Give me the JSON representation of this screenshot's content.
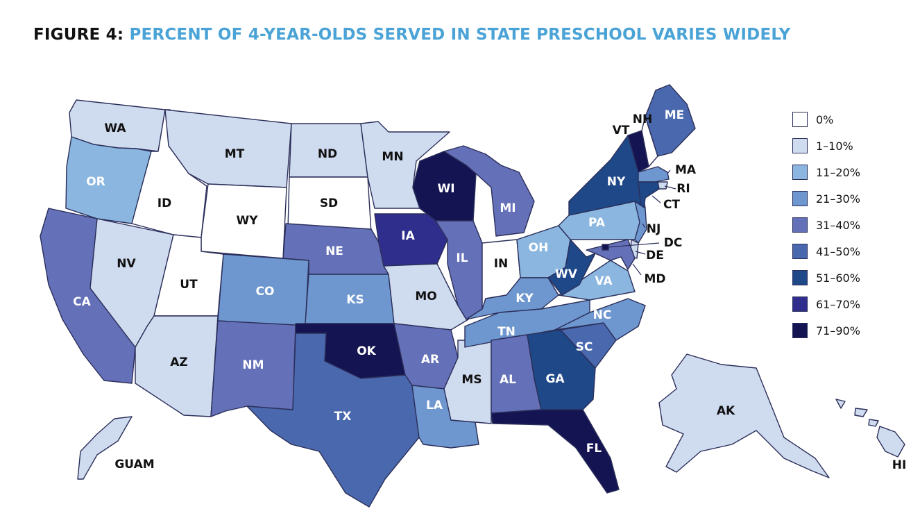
{
  "title": {
    "prefix": "FIGURE 4: ",
    "text": "PERCENT OF 4-YEAR-OLDS SERVED IN STATE PRESCHOOL VARIES WIDELY"
  },
  "legend": [
    {
      "label": "0%",
      "color": "#ffffff"
    },
    {
      "label": "1–10%",
      "color": "#cfdbee"
    },
    {
      "label": "11–20%",
      "color": "#8ab6e0"
    },
    {
      "label": "21–30%",
      "color": "#6f97cf"
    },
    {
      "label": "31–40%",
      "color": "#6470b8"
    },
    {
      "label": "41–50%",
      "color": "#4a68ad"
    },
    {
      "label": "51–60%",
      "color": "#1e4887"
    },
    {
      "label": "61–70%",
      "color": "#2f2e8c"
    },
    {
      "label": "71–90%",
      "color": "#151453"
    }
  ],
  "states": [
    {
      "code": "WA",
      "category": "1–10%"
    },
    {
      "code": "OR",
      "category": "11–20%"
    },
    {
      "code": "CA",
      "category": "31–40%"
    },
    {
      "code": "NV",
      "category": "1–10%"
    },
    {
      "code": "ID",
      "category": "0%"
    },
    {
      "code": "MT",
      "category": "1–10%"
    },
    {
      "code": "WY",
      "category": "0%"
    },
    {
      "code": "UT",
      "category": "0%"
    },
    {
      "code": "AZ",
      "category": "1–10%"
    },
    {
      "code": "CO",
      "category": "21–30%"
    },
    {
      "code": "NM",
      "category": "31–40%"
    },
    {
      "code": "ND",
      "category": "1–10%"
    },
    {
      "code": "SD",
      "category": "0%"
    },
    {
      "code": "NE",
      "category": "31–40%"
    },
    {
      "code": "KS",
      "category": "21–30%"
    },
    {
      "code": "OK",
      "category": "71–90%"
    },
    {
      "code": "TX",
      "category": "41–50%"
    },
    {
      "code": "MN",
      "category": "1–10%"
    },
    {
      "code": "IA",
      "category": "61–70%"
    },
    {
      "code": "MO",
      "category": "1–10%"
    },
    {
      "code": "AR",
      "category": "31–40%"
    },
    {
      "code": "LA",
      "category": "21–30%"
    },
    {
      "code": "WI",
      "category": "71–90%"
    },
    {
      "code": "IL",
      "category": "31–40%"
    },
    {
      "code": "MS",
      "category": "1–10%"
    },
    {
      "code": "MI",
      "category": "31–40%"
    },
    {
      "code": "IN",
      "category": "0%"
    },
    {
      "code": "OH",
      "category": "11–20%"
    },
    {
      "code": "KY",
      "category": "21–30%"
    },
    {
      "code": "TN",
      "category": "21–30%"
    },
    {
      "code": "AL",
      "category": "31–40%"
    },
    {
      "code": "GA",
      "category": "51–60%"
    },
    {
      "code": "FL",
      "category": "71–90%"
    },
    {
      "code": "SC",
      "category": "41–50%"
    },
    {
      "code": "NC",
      "category": "21–30%"
    },
    {
      "code": "VA",
      "category": "11–20%"
    },
    {
      "code": "WV",
      "category": "51–60%"
    },
    {
      "code": "PA",
      "category": "11–20%"
    },
    {
      "code": "NY",
      "category": "51–60%"
    },
    {
      "code": "VT",
      "category": "71–90%"
    },
    {
      "code": "NH",
      "category": "0%"
    },
    {
      "code": "ME",
      "category": "41–50%"
    },
    {
      "code": "MA",
      "category": "21–30%"
    },
    {
      "code": "RI",
      "category": "1–10%"
    },
    {
      "code": "CT",
      "category": "51–60%"
    },
    {
      "code": "NJ",
      "category": "21–30%"
    },
    {
      "code": "DE",
      "category": "1–10%"
    },
    {
      "code": "MD",
      "category": "31–40%"
    },
    {
      "code": "DC",
      "category": "71–90%"
    },
    {
      "code": "AK",
      "category": "1–10%"
    },
    {
      "code": "HI",
      "category": "1–10%"
    },
    {
      "code": "GUAM",
      "category": "1–10%"
    }
  ]
}
